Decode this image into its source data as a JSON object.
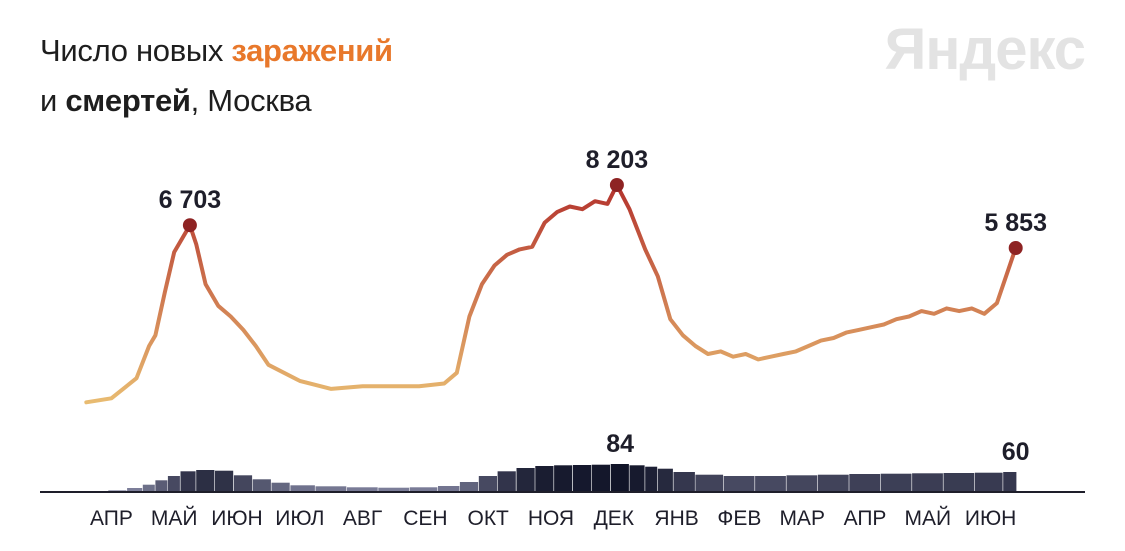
{
  "title": {
    "prefix": "Число новых ",
    "infections_word": "заражений",
    "line2_prefix": "и ",
    "deaths_word": "смертей",
    "line2_suffix": ", Москва"
  },
  "brand": "Яндекс",
  "colors": {
    "infections_low": "#e9bd72",
    "infections_high": "#b4332d",
    "peak_marker": "#8e2323",
    "deaths_low": "#8e90ac",
    "deaths_high": "#111428",
    "axis": "#1e1e2a"
  },
  "chart_data": [
    {
      "type": "line",
      "name": "infections",
      "x_unit": "month index (0 = start of Mar 2020)",
      "x": [
        0.1,
        0.5,
        0.9,
        1.1,
        1.2,
        1.35,
        1.5,
        1.75,
        1.85,
        2.0,
        2.2,
        2.4,
        2.6,
        2.8,
        3.0,
        3.5,
        4.0,
        4.5,
        5.0,
        5.4,
        5.6,
        5.8,
        6.0,
        6.2,
        6.4,
        6.6,
        6.8,
        7.0,
        7.2,
        7.4,
        7.6,
        7.8,
        8.0,
        8.2,
        8.4,
        8.55,
        8.75,
        9.0,
        9.2,
        9.4,
        9.6,
        9.8,
        10.0,
        10.2,
        10.4,
        10.6,
        10.8,
        11.0,
        11.2,
        11.4,
        11.6,
        11.8,
        12.0,
        12.2,
        12.4,
        12.6,
        12.8,
        13.0,
        13.2,
        13.4,
        13.6,
        13.8,
        14.0,
        14.2,
        14.4,
        14.6,
        14.9
      ],
      "values": [
        100,
        250,
        1000,
        2200,
        2600,
        4200,
        5700,
        6703,
        6000,
        4500,
        3700,
        3300,
        2800,
        2200,
        1500,
        900,
        600,
        700,
        700,
        700,
        750,
        800,
        1200,
        3300,
        4500,
        5200,
        5600,
        5800,
        5900,
        6800,
        7200,
        7400,
        7300,
        7600,
        7500,
        8203,
        7300,
        5800,
        4800,
        3200,
        2600,
        2200,
        1900,
        2000,
        1800,
        1900,
        1700,
        1800,
        1900,
        2000,
        2200,
        2400,
        2500,
        2700,
        2800,
        2900,
        3000,
        3200,
        3300,
        3500,
        3400,
        3600,
        3500,
        3600,
        3400,
        3800,
        5853
      ],
      "annotations": [
        {
          "label": "6 703",
          "x": 1.75,
          "value": 6703
        },
        {
          "label": "8 203",
          "x": 8.55,
          "value": 8203
        },
        {
          "label": "5 853",
          "x": 14.9,
          "value": 5853
        }
      ]
    },
    {
      "type": "bar",
      "name": "deaths",
      "x_unit": "month index (0 = start of Mar 2020)",
      "x": [
        0.3,
        0.6,
        0.9,
        1.1,
        1.3,
        1.5,
        1.7,
        2.0,
        2.3,
        2.6,
        2.9,
        3.2,
        3.5,
        4.0,
        4.5,
        5.0,
        5.5,
        5.9,
        6.2,
        6.5,
        6.8,
        7.1,
        7.4,
        7.7,
        8.0,
        8.3,
        8.6,
        8.9,
        9.1,
        9.3,
        9.6,
        10.0,
        10.5,
        11.0,
        11.5,
        12.0,
        12.5,
        13.0,
        13.5,
        14.0,
        14.5,
        14.9
      ],
      "values": [
        2,
        5,
        12,
        22,
        35,
        48,
        62,
        66,
        64,
        50,
        38,
        28,
        20,
        17,
        14,
        13,
        14,
        18,
        30,
        48,
        62,
        72,
        78,
        80,
        81,
        82,
        84,
        80,
        76,
        70,
        60,
        52,
        48,
        48,
        50,
        52,
        54,
        55,
        56,
        57,
        58,
        60
      ],
      "annotations": [
        {
          "label": "84",
          "x": 8.6,
          "value": 84
        },
        {
          "label": "60",
          "x": 14.9,
          "value": 60
        }
      ]
    }
  ],
  "x_axis": {
    "months": [
      "АПР",
      "МАЙ",
      "ИЮН",
      "ИЮЛ",
      "АВГ",
      "СЕН",
      "ОКТ",
      "НОЯ",
      "ДЕК",
      "ЯНВ",
      "ФЕВ",
      "МАР",
      "АПР",
      "МАЙ",
      "ИЮН"
    ],
    "month_positions": [
      1,
      2,
      3,
      4,
      5,
      6,
      7,
      8,
      9,
      10,
      11,
      12,
      13,
      14,
      15
    ]
  }
}
